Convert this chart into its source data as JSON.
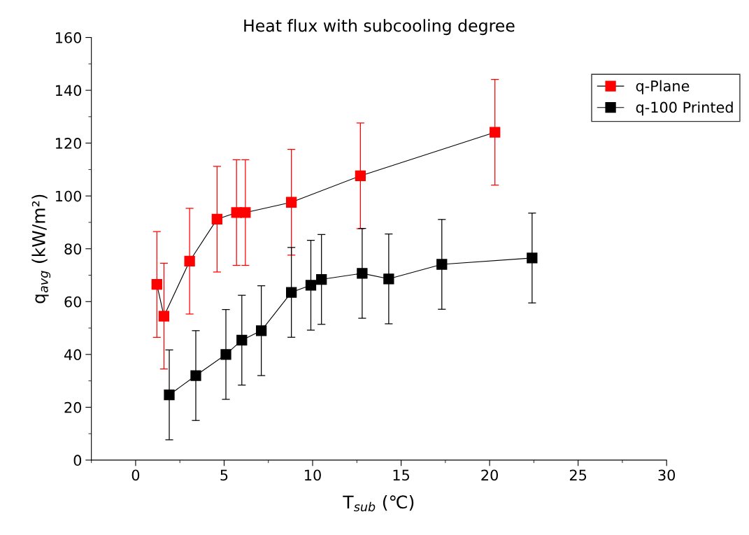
{
  "chart_data": {
    "type": "line",
    "title": "Heat flux with subcooling degree",
    "xlabel": "T$_{sub}$ (℃)",
    "ylabel": "q$_{avg}$ (kW/m²)",
    "xlim": [
      -2.5,
      30
    ],
    "xticks": [
      0,
      5,
      10,
      15,
      20,
      25,
      30
    ],
    "ylim": [
      0,
      160
    ],
    "yticks": [
      0,
      20,
      40,
      60,
      80,
      100,
      120,
      140,
      160
    ],
    "grid": false,
    "legend": "top right",
    "marker": "square",
    "line_style": "solid",
    "series": [
      {
        "name": "q-Plane",
        "color": "#ff0000",
        "x": [
          1.2,
          1.6,
          3.05,
          4.6,
          5.7,
          6.2,
          8.8,
          12.7,
          20.3
        ],
        "values": [
          66.5,
          54.5,
          75.3,
          91.2,
          93.7,
          93.7,
          97.6,
          107.6,
          124.1
        ],
        "errors": [
          20,
          20,
          20,
          20,
          20,
          20,
          20,
          20,
          20
        ]
      },
      {
        "name": "q-100 Printed",
        "color": "#000000",
        "x": [
          1.9,
          3.4,
          5.1,
          6.0,
          7.1,
          8.8,
          9.9,
          10.5,
          12.8,
          14.3,
          17.3,
          22.4
        ],
        "values": [
          24.7,
          32,
          40,
          45.4,
          49,
          63.5,
          66.2,
          68.4,
          70.7,
          68.6,
          74.1,
          76.5
        ],
        "errors": [
          17,
          17,
          17,
          17,
          17,
          17,
          17,
          17,
          17,
          17,
          17,
          17
        ]
      }
    ]
  }
}
